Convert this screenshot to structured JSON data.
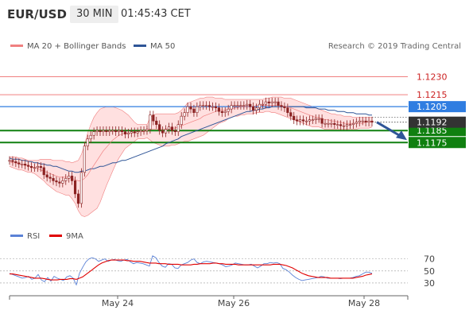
{
  "header": {
    "instrument": "EUR/USD",
    "timeframe": "30 MIN",
    "time": "01:45:43 CET"
  },
  "legend": {
    "bollinger_label": "MA 20 + Bollinger Bands",
    "ma50_label": "MA 50",
    "copyright": "Research © 2019 Trading Central",
    "rsi_label": "RSI",
    "ma9_label": "9MA"
  },
  "colors": {
    "candle": "#8b2222",
    "bb_fill": "#ffd6d6",
    "bb_line": "#f08080",
    "ma50": "#2f5597",
    "support": "#108010",
    "resistance": "#f08080",
    "pivot": "#2f7de1",
    "last_price_tag": "#333333",
    "arrow": "#2f5597",
    "rsi_line": "#5b82d6",
    "rsi_ma": "#e00000"
  },
  "chart_data": [
    {
      "type": "candlestick",
      "title": "",
      "ylim": [
        1.1108,
        1.1243
      ],
      "x_tick_labels": [
        "May 24",
        "May 26",
        "May 28"
      ],
      "levels": [
        {
          "value": 1.123,
          "label": "1.1230",
          "kind": "resistance"
        },
        {
          "value": 1.1215,
          "label": "1.1215",
          "kind": "resistance"
        },
        {
          "value": 1.1205,
          "label": "1.1205",
          "kind": "pivot"
        },
        {
          "value": 1.1185,
          "label": "1.1185",
          "kind": "support"
        },
        {
          "value": 1.1175,
          "label": "1.1175",
          "kind": "support"
        }
      ],
      "last_price": {
        "value": 1.1192,
        "label": "1.1192"
      },
      "projection": {
        "from": 1.1192,
        "to": 1.1177
      },
      "close": [
        1.116,
        1.1159,
        1.1158,
        1.1157,
        1.1157,
        1.1156,
        1.1155,
        1.1154,
        1.1154,
        1.1155,
        1.1154,
        1.1148,
        1.1146,
        1.1145,
        1.1143,
        1.1142,
        1.1141,
        1.1143,
        1.1145,
        1.1147,
        1.1143,
        1.1132,
        1.1124,
        1.115,
        1.1172,
        1.1178,
        1.1181,
        1.1184,
        1.1185,
        1.1184,
        1.1185,
        1.1184,
        1.1185,
        1.1185,
        1.1184,
        1.1185,
        1.1184,
        1.1182,
        1.1183,
        1.1184,
        1.1183,
        1.1184,
        1.1185,
        1.1185,
        1.1186,
        1.1198,
        1.1193,
        1.119,
        1.1185,
        1.1183,
        1.1186,
        1.1188,
        1.1185,
        1.1184,
        1.119,
        1.1197,
        1.12,
        1.1205,
        1.1203,
        1.12,
        1.1205,
        1.1206,
        1.1206,
        1.1206,
        1.1205,
        1.1205,
        1.1204,
        1.1201,
        1.12,
        1.1201,
        1.1203,
        1.1206,
        1.1206,
        1.1206,
        1.1206,
        1.1206,
        1.1207,
        1.1205,
        1.1202,
        1.1204,
        1.1207,
        1.1207,
        1.1209,
        1.1208,
        1.1209,
        1.1209,
        1.1206,
        1.1205,
        1.1204,
        1.12,
        1.1197,
        1.1194,
        1.1193,
        1.1194,
        1.1193,
        1.1193,
        1.1194,
        1.1194,
        1.1195,
        1.1195,
        1.1191,
        1.1191,
        1.1191,
        1.1191,
        1.119,
        1.119,
        1.1189,
        1.1189,
        1.119,
        1.119,
        1.1191,
        1.1192,
        1.1193,
        1.1193,
        1.1192,
        1.1193,
        1.1192
      ],
      "ma20": [
        1.1159,
        1.1158,
        1.1158,
        1.1157,
        1.1157,
        1.1156,
        1.1155,
        1.1155,
        1.1154,
        1.1153,
        1.1152,
        1.1151,
        1.115,
        1.1149,
        1.1148,
        1.1147,
        1.1146,
        1.1146,
        1.1146,
        1.1146,
        1.1145,
        1.1144,
        1.1143,
        1.1143,
        1.1145,
        1.1148,
        1.1152,
        1.1156,
        1.116,
        1.1164,
        1.1168,
        1.1171,
        1.1174,
        1.1177,
        1.1179,
        1.1181,
        1.1182,
        1.1183,
        1.1183,
        1.1183,
        1.1184,
        1.1184,
        1.1184,
        1.1184,
        1.1185,
        1.1186,
        1.1186,
        1.1186,
        1.1186,
        1.1186,
        1.1186,
        1.1187,
        1.1187,
        1.1187,
        1.1188,
        1.1189,
        1.119,
        1.1191,
        1.1192,
        1.1193,
        1.1194,
        1.1195,
        1.1197,
        1.1198,
        1.1199,
        1.12,
        1.1201,
        1.1202,
        1.1202,
        1.1202,
        1.1203,
        1.1203,
        1.1204,
        1.1204,
        1.1205,
        1.1205,
        1.1205,
        1.1205,
        1.1205,
        1.1206,
        1.1206,
        1.1206,
        1.1206,
        1.1206,
        1.1206,
        1.1206,
        1.1206,
        1.1206,
        1.1205,
        1.1205,
        1.1204,
        1.1203,
        1.1202,
        1.1201,
        1.12,
        1.1199,
        1.1198,
        1.1197,
        1.1196,
        1.1196,
        1.1195,
        1.1194,
        1.1194,
        1.1193,
        1.1193,
        1.1192,
        1.1192,
        1.1191,
        1.1191,
        1.1191,
        1.1191,
        1.1191,
        1.1191,
        1.1191,
        1.1192,
        1.1192,
        1.1192
      ],
      "bb_upper": [
        1.1163,
        1.1163,
        1.1163,
        1.1162,
        1.1162,
        1.1161,
        1.116,
        1.116,
        1.116,
        1.116,
        1.1161,
        1.1161,
        1.1161,
        1.1161,
        1.116,
        1.116,
        1.116,
        1.116,
        1.1159,
        1.1159,
        1.1158,
        1.1159,
        1.116,
        1.1165,
        1.1173,
        1.1183,
        1.119,
        1.1196,
        1.12,
        1.1203,
        1.1204,
        1.1205,
        1.1205,
        1.1205,
        1.1204,
        1.1203,
        1.1202,
        1.12,
        1.1198,
        1.1195,
        1.1192,
        1.119,
        1.119,
        1.119,
        1.119,
        1.1196,
        1.1198,
        1.1199,
        1.1199,
        1.1199,
        1.1199,
        1.1199,
        1.1199,
        1.1199,
        1.12,
        1.1202,
        1.1205,
        1.1208,
        1.1209,
        1.121,
        1.1211,
        1.1212,
        1.1212,
        1.1213,
        1.1213,
        1.1213,
        1.1212,
        1.1212,
        1.1212,
        1.1211,
        1.1211,
        1.1211,
        1.1211,
        1.1211,
        1.1211,
        1.1211,
        1.1211,
        1.1211,
        1.1211,
        1.1211,
        1.1211,
        1.1211,
        1.1212,
        1.1212,
        1.1213,
        1.1213,
        1.1213,
        1.1213,
        1.1212,
        1.1212,
        1.1212,
        1.1211,
        1.121,
        1.1209,
        1.1208,
        1.1207,
        1.1206,
        1.1205,
        1.1204,
        1.1203,
        1.1202,
        1.1201,
        1.12,
        1.1199,
        1.1199,
        1.1198,
        1.1198,
        1.1197,
        1.1197,
        1.1197,
        1.1196,
        1.1196,
        1.1196,
        1.1196,
        1.1196,
        1.1196,
        1.1196
      ],
      "bb_lower": [
        1.1155,
        1.1154,
        1.1153,
        1.1152,
        1.1152,
        1.1151,
        1.115,
        1.115,
        1.1149,
        1.1147,
        1.1145,
        1.1143,
        1.114,
        1.1138,
        1.1136,
        1.1134,
        1.1133,
        1.1132,
        1.1131,
        1.1131,
        1.1128,
        1.1124,
        1.1118,
        1.1114,
        1.1113,
        1.1114,
        1.1116,
        1.1118,
        1.112,
        1.1125,
        1.1132,
        1.1139,
        1.1145,
        1.1151,
        1.1157,
        1.1162,
        1.1166,
        1.117,
        1.1172,
        1.1174,
        1.1176,
        1.1178,
        1.1178,
        1.1178,
        1.1179,
        1.1177,
        1.1175,
        1.1174,
        1.1173,
        1.1172,
        1.1172,
        1.1172,
        1.1173,
        1.1173,
        1.1174,
        1.1175,
        1.1176,
        1.1176,
        1.1177,
        1.1178,
        1.1179,
        1.118,
        1.1181,
        1.1183,
        1.1185,
        1.1187,
        1.1189,
        1.1191,
        1.1192,
        1.1193,
        1.1195,
        1.1196,
        1.1197,
        1.1197,
        1.1198,
        1.1198,
        1.1199,
        1.1199,
        1.1199,
        1.12,
        1.12,
        1.12,
        1.1201,
        1.1201,
        1.12,
        1.12,
        1.1199,
        1.1198,
        1.1197,
        1.1196,
        1.1195,
        1.1194,
        1.1193,
        1.1192,
        1.1191,
        1.119,
        1.1189,
        1.1188,
        1.1188,
        1.1188,
        1.1187,
        1.1186,
        1.1186,
        1.1186,
        1.1186,
        1.1186,
        1.1186,
        1.1186,
        1.1186,
        1.1186,
        1.1186,
        1.1186,
        1.1187,
        1.1187,
        1.1187,
        1.1187,
        1.1188
      ],
      "ma50": [
        1.1162,
        1.1161,
        1.1161,
        1.1161,
        1.116,
        1.116,
        1.1159,
        1.1159,
        1.1158,
        1.1158,
        1.1157,
        1.1157,
        1.1156,
        1.1156,
        1.1155,
        1.1155,
        1.1154,
        1.1153,
        1.1152,
        1.1151,
        1.1151,
        1.115,
        1.115,
        1.1151,
        1.1151,
        1.1152,
        1.1153,
        1.1153,
        1.1154,
        1.1155,
        1.1155,
        1.1156,
        1.1157,
        1.1158,
        1.1158,
        1.1159,
        1.116,
        1.116,
        1.1161,
        1.1162,
        1.1163,
        1.1164,
        1.1165,
        1.1166,
        1.1167,
        1.1168,
        1.1169,
        1.117,
        1.1171,
        1.1172,
        1.1174,
        1.1175,
        1.1176,
        1.1177,
        1.1178,
        1.118,
        1.1181,
        1.1182,
        1.1183,
        1.1184,
        1.1185,
        1.1186,
        1.1187,
        1.1188,
        1.1189,
        1.119,
        1.1191,
        1.1192,
        1.1193,
        1.1194,
        1.1195,
        1.1196,
        1.1197,
        1.1198,
        1.1199,
        1.12,
        1.1201,
        1.1201,
        1.1202,
        1.1202,
        1.1203,
        1.1203,
        1.1204,
        1.1204,
        1.1205,
        1.1205,
        1.1205,
        1.1205,
        1.1205,
        1.1205,
        1.1205,
        1.1205,
        1.1205,
        1.1205,
        1.1205,
        1.1204,
        1.1204,
        1.1204,
        1.1204,
        1.1203,
        1.1203,
        1.1203,
        1.1202,
        1.1202,
        1.1202,
        1.1201,
        1.1201,
        1.1201,
        1.12,
        1.12,
        1.12,
        1.1199,
        1.1199,
        1.1199,
        1.1199,
        1.1198,
        1.1198
      ]
    },
    {
      "type": "line",
      "ylim": [
        18,
        88
      ],
      "y_ticks": [
        30,
        50,
        70
      ],
      "series": [
        {
          "name": "RSI",
          "values": [
            46,
            44,
            42,
            40,
            38,
            39,
            41,
            36,
            38,
            44,
            35,
            32,
            39,
            33,
            41,
            38,
            36,
            34,
            40,
            42,
            38,
            27,
            46,
            56,
            65,
            70,
            72,
            70,
            66,
            68,
            70,
            66,
            68,
            69,
            67,
            66,
            68,
            69,
            65,
            62,
            64,
            63,
            62,
            60,
            58,
            75,
            72,
            64,
            58,
            56,
            62,
            61,
            55,
            54,
            60,
            62,
            64,
            68,
            70,
            64,
            62,
            65,
            66,
            65,
            64,
            63,
            62,
            60,
            57,
            58,
            60,
            63,
            62,
            61,
            60,
            60,
            61,
            58,
            55,
            58,
            62,
            62,
            64,
            63,
            64,
            62,
            54,
            52,
            48,
            43,
            39,
            36,
            34,
            35,
            36,
            37,
            38,
            39,
            41,
            40,
            38,
            38,
            38,
            38,
            37,
            38,
            38,
            38,
            39,
            41,
            42,
            45,
            48,
            48,
            46
          ]
        },
        {
          "name": "9MA",
          "values": [
            45,
            45,
            44,
            43,
            42,
            41,
            40,
            39,
            38,
            38,
            38,
            37,
            36,
            35,
            35,
            35,
            36,
            36,
            36,
            37,
            37,
            36,
            38,
            40,
            44,
            48,
            52,
            56,
            60,
            63,
            65,
            67,
            68,
            68,
            68,
            68,
            68,
            67,
            67,
            66,
            66,
            66,
            65,
            64,
            63,
            63,
            63,
            62,
            62,
            62,
            61,
            61,
            61,
            61,
            60,
            60,
            60,
            60,
            61,
            61,
            62,
            62,
            62,
            62,
            63,
            63,
            62,
            62,
            61,
            61,
            61,
            61,
            60,
            60,
            60,
            60,
            60,
            60,
            60,
            60,
            60,
            60,
            60,
            61,
            61,
            61,
            60,
            59,
            57,
            55,
            52,
            49,
            46,
            44,
            42,
            41,
            40,
            39,
            39,
            39,
            39,
            38,
            38,
            38,
            38,
            38,
            38,
            38,
            38,
            39,
            40,
            41,
            43,
            44,
            45
          ]
        }
      ]
    }
  ]
}
